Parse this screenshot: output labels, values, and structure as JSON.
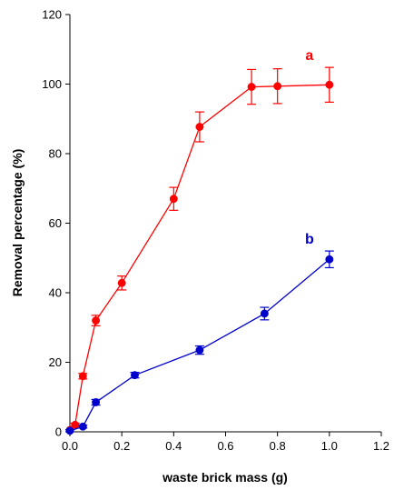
{
  "chart_data": {
    "type": "line",
    "title": "",
    "xlabel": "waste brick mass (g)",
    "ylabel": "Removal percentage (%)",
    "xlim": [
      0.0,
      1.2
    ],
    "ylim": [
      0,
      120
    ],
    "x_ticks": [
      "0.0",
      "0.2",
      "0.4",
      "0.6",
      "0.8",
      "1.0",
      "1.2"
    ],
    "y_ticks": [
      "0",
      "20",
      "40",
      "60",
      "80",
      "100",
      "120"
    ],
    "grid": false,
    "legend": "none",
    "series": [
      {
        "name": "a",
        "color": "#ff0000",
        "x": [
          0.0,
          0.02,
          0.05,
          0.1,
          0.2,
          0.4,
          0.5,
          0.7,
          0.8,
          1.0
        ],
        "y": [
          0.5,
          2.0,
          16.0,
          32.0,
          42.8,
          67.0,
          87.7,
          99.2,
          99.4,
          99.8
        ],
        "err": [
          0.0,
          0.5,
          0.8,
          1.5,
          2.0,
          3.3,
          4.3,
          5.0,
          5.0,
          5.0
        ]
      },
      {
        "name": "b",
        "color": "#0000cc",
        "x": [
          0.0,
          0.05,
          0.1,
          0.25,
          0.5,
          0.75,
          1.0
        ],
        "y": [
          0.3,
          1.5,
          8.5,
          16.3,
          23.5,
          34.0,
          49.6
        ],
        "err": [
          0.3,
          0.4,
          0.8,
          0.8,
          1.2,
          1.8,
          2.4
        ]
      }
    ]
  }
}
